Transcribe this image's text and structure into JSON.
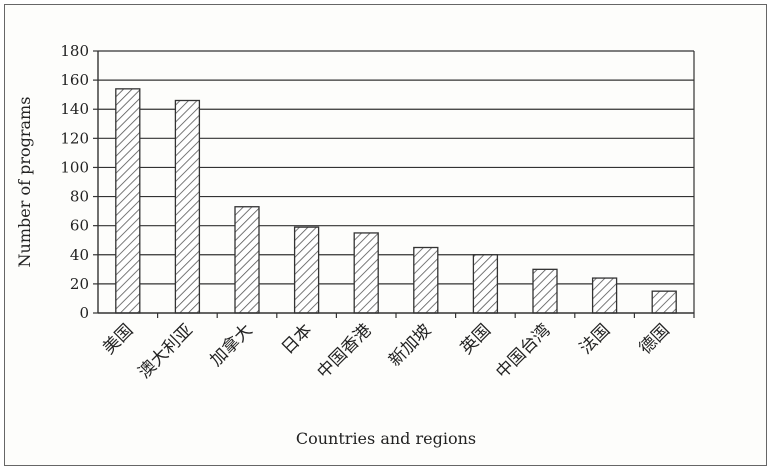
{
  "chart_data": {
    "type": "bar",
    "categories": [
      "美国",
      "澳大利亚",
      "加拿大",
      "日本",
      "中国香港",
      "新加坡",
      "英国",
      "中国台湾",
      "法国",
      "德国"
    ],
    "values": [
      154,
      146,
      73,
      59,
      55,
      45,
      40,
      30,
      24,
      15
    ],
    "xlabel": "Countries and regions",
    "ylabel": "Number of programs",
    "ylim": [
      0,
      180
    ],
    "yticks": [
      "0",
      "20",
      "40",
      "60",
      "80",
      "100",
      "120",
      "140",
      "160",
      "180"
    ],
    "grid": true,
    "bar_fill": "diagonal hatch",
    "colors": {
      "bar_stroke": "#333333",
      "hatch": "#555555",
      "grid": "#333333",
      "background": "#fdfdfb"
    }
  }
}
